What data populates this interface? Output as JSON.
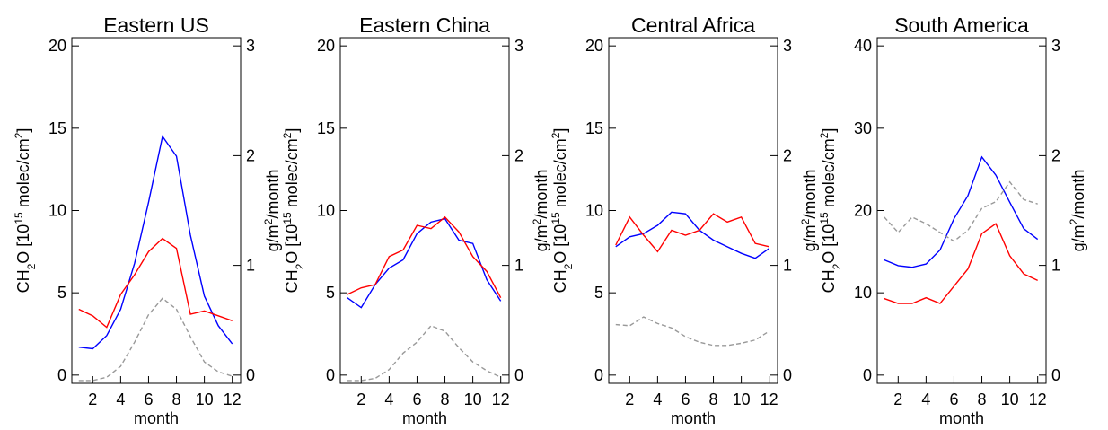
{
  "chart_data": [
    {
      "type": "line",
      "title": "Eastern US",
      "ylabel": [
        "CH",
        "2",
        "O [10",
        "15",
        " molec/cm",
        "2",
        "]"
      ],
      "y2label": [
        "g/m",
        "2",
        "/month"
      ],
      "xlabel": "month",
      "x": [
        1,
        2,
        3,
        4,
        5,
        6,
        7,
        8,
        9,
        10,
        11,
        12
      ],
      "xlim": [
        0.5,
        12.6
      ],
      "xticks": [
        2,
        4,
        6,
        8,
        10,
        12
      ],
      "ylim": [
        -0.5,
        20.5
      ],
      "yticks": [
        0,
        5,
        10,
        15,
        20
      ],
      "y2lim": [
        -0.075,
        3.075
      ],
      "y2ticks": [
        0,
        1,
        2,
        3
      ],
      "series": [
        {
          "color": "#0000ff",
          "values": [
            1.7,
            1.6,
            2.4,
            4,
            6.8,
            10.5,
            14.5,
            13.3,
            8.5,
            4.8,
            3,
            1.9
          ]
        },
        {
          "color": "#ff0000",
          "values": [
            4,
            3.6,
            2.9,
            4.9,
            6.1,
            7.5,
            8.3,
            7.7,
            3.7,
            3.9,
            3.6,
            3.3
          ]
        },
        {
          "color": "#999999",
          "dash": true,
          "axis": "y2",
          "values": [
            -0.05,
            -0.05,
            -0.02,
            0.08,
            0.3,
            0.55,
            0.7,
            0.6,
            0.35,
            0.12,
            0.03,
            -0.01
          ]
        }
      ]
    },
    {
      "type": "line",
      "title": "Eastern China",
      "ylabel": [
        "CH",
        "2",
        "O [10",
        "15",
        " molec/cm",
        "2",
        "]"
      ],
      "y2label": [
        "g/m",
        "2",
        "/month"
      ],
      "xlabel": "month",
      "x": [
        1,
        2,
        3,
        4,
        5,
        6,
        7,
        8,
        9,
        10,
        11,
        12
      ],
      "xlim": [
        0.5,
        12.6
      ],
      "xticks": [
        2,
        4,
        6,
        8,
        10,
        12
      ],
      "ylim": [
        -0.5,
        20.5
      ],
      "yticks": [
        0,
        5,
        10,
        15,
        20
      ],
      "y2lim": [
        -0.075,
        3.075
      ],
      "y2ticks": [
        0,
        1,
        2,
        3
      ],
      "series": [
        {
          "color": "#0000ff",
          "values": [
            4.7,
            4.1,
            5.5,
            6.5,
            7,
            8.6,
            9.3,
            9.5,
            8.2,
            8,
            5.8,
            4.5
          ]
        },
        {
          "color": "#ff0000",
          "values": [
            4.9,
            5.3,
            5.5,
            7.2,
            7.6,
            9.1,
            8.9,
            9.6,
            8.7,
            7.2,
            6.3,
            4.7
          ]
        },
        {
          "color": "#999999",
          "dash": true,
          "axis": "y2",
          "values": [
            -0.05,
            -0.05,
            -0.03,
            0.05,
            0.2,
            0.3,
            0.45,
            0.4,
            0.25,
            0.12,
            0.04,
            -0.02
          ]
        }
      ]
    },
    {
      "type": "line",
      "title": "Central Africa",
      "ylabel": [
        "CH",
        "2",
        "O [10",
        "15",
        " molec/cm",
        "2",
        "]"
      ],
      "y2label": [
        "g/m",
        "2",
        "/month"
      ],
      "xlabel": "month",
      "x": [
        1,
        2,
        3,
        4,
        5,
        6,
        7,
        8,
        9,
        10,
        11,
        12
      ],
      "xlim": [
        0.5,
        12.6
      ],
      "xticks": [
        2,
        4,
        6,
        8,
        10,
        12
      ],
      "ylim": [
        -0.5,
        20.5
      ],
      "yticks": [
        0,
        5,
        10,
        15,
        20
      ],
      "y2lim": [
        -0.075,
        3.075
      ],
      "y2ticks": [
        0,
        1,
        2,
        3
      ],
      "series": [
        {
          "color": "#0000ff",
          "values": [
            7.8,
            8.4,
            8.6,
            9.1,
            9.9,
            9.8,
            8.8,
            8.2,
            7.8,
            7.4,
            7.1,
            7.7
          ]
        },
        {
          "color": "#ff0000",
          "values": [
            7.9,
            9.6,
            8.5,
            7.5,
            8.8,
            8.5,
            8.8,
            9.8,
            9.3,
            9.6,
            8,
            7.8
          ]
        },
        {
          "color": "#999999",
          "dash": true,
          "axis": "y2",
          "values": [
            0.46,
            0.45,
            0.53,
            0.47,
            0.43,
            0.35,
            0.3,
            0.27,
            0.27,
            0.29,
            0.32,
            0.4
          ]
        }
      ]
    },
    {
      "type": "line",
      "title": "South America",
      "ylabel": [
        "CH",
        "2",
        "O [10",
        "15",
        " molec/cm",
        "2",
        "]"
      ],
      "y2label": [
        "g/m",
        "2",
        "/month"
      ],
      "xlabel": "month",
      "x": [
        1,
        2,
        3,
        4,
        5,
        6,
        7,
        8,
        9,
        10,
        11,
        12
      ],
      "xlim": [
        0.5,
        12.6
      ],
      "xticks": [
        2,
        4,
        6,
        8,
        10,
        12
      ],
      "ylim": [
        -1,
        41
      ],
      "yticks": [
        0,
        10,
        20,
        30,
        40
      ],
      "y2lim": [
        -0.075,
        3.075
      ],
      "y2ticks": [
        0,
        1,
        2,
        3
      ],
      "series": [
        {
          "color": "#0000ff",
          "values": [
            14,
            13.3,
            13.1,
            13.5,
            15.2,
            19,
            21.8,
            26.5,
            24.3,
            21,
            17.8,
            16.5
          ]
        },
        {
          "color": "#ff0000",
          "values": [
            9.3,
            8.7,
            8.7,
            9.4,
            8.7,
            10.8,
            12.9,
            17.2,
            18.4,
            14.5,
            12.3,
            11.5
          ]
        },
        {
          "color": "#999999",
          "dash": true,
          "axis": "y2",
          "values": [
            1.44,
            1.3,
            1.44,
            1.38,
            1.3,
            1.22,
            1.32,
            1.52,
            1.58,
            1.76,
            1.6,
            1.56
          ]
        }
      ]
    }
  ]
}
